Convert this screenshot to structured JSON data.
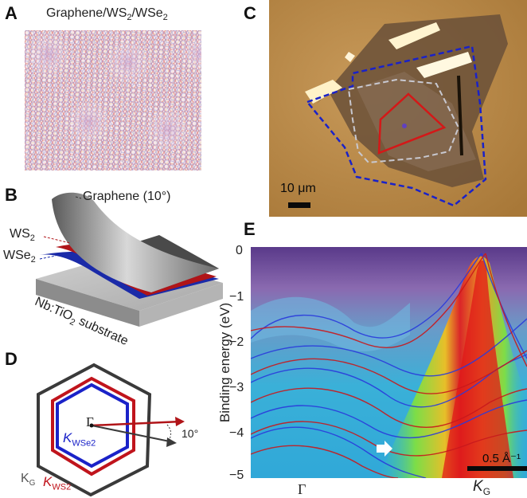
{
  "panels": {
    "a": {
      "letter": "A",
      "title_base": "Graphene/WS",
      "title_sub1": "2",
      "title_mid": "/WSe",
      "title_sub2": "2"
    },
    "b": {
      "letter": "B",
      "graphene_label": "Graphene (10°)",
      "ws2_base": "WS",
      "ws2_sub": "2",
      "wse2_base": "WSe",
      "wse2_sub": "2",
      "substrate_base": "Nb:TiO",
      "substrate_sub": "2",
      "substrate_tail": " substrate"
    },
    "c": {
      "letter": "C",
      "scale_label": "10 μm"
    },
    "d": {
      "letter": "D",
      "gamma": "Γ",
      "angle": "10°",
      "kwse2_base": "K",
      "kwse2_sub": "WSe2",
      "kg_base": "K",
      "kg_sub": "G",
      "kws2_base": "K",
      "kws2_sub": "WS2",
      "colors": {
        "graphene": "#3a3a3a",
        "ws2": "#c0141c",
        "wse2": "#1a22c8"
      }
    },
    "e": {
      "letter": "E",
      "ylabel": "Binding energy (eV)",
      "yticks": [
        "0",
        "−1",
        "−2",
        "−3",
        "−4",
        "−5"
      ],
      "xtick_gamma": "Γ",
      "xtick_kg_base": "K",
      "xtick_kg_sub": "G",
      "scale_label": "0.5 Å⁻¹"
    }
  },
  "chart_data": {
    "type": "heatmap",
    "title": "",
    "xlabel": "",
    "ylabel": "Binding energy (eV)",
    "ylim": [
      -5,
      0.1
    ],
    "xticks": [
      "Γ",
      "KG"
    ],
    "yticks": [
      0,
      -1,
      -2,
      -3,
      -4,
      -5
    ],
    "grid": false
  }
}
